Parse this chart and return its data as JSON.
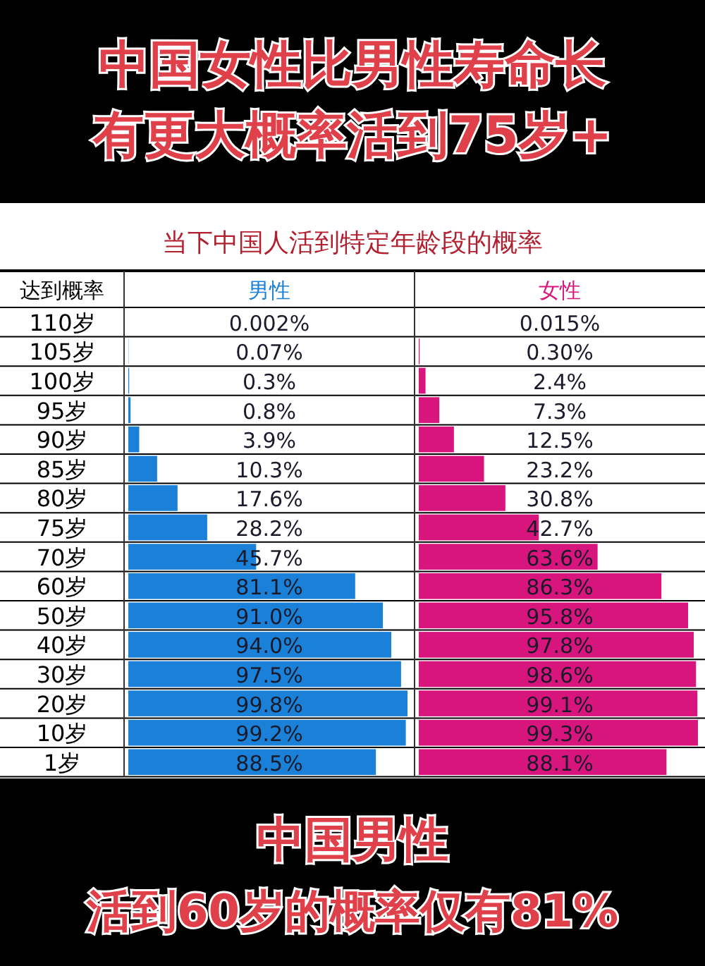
{
  "chart_data": [
    {
      "type": "bar",
      "orientation": "horizontal",
      "title": "中国女性比男性寿命长有更大概率活到75岁+",
      "subtitle": "当下中国人活到特定年龄段的概率",
      "ylabel": "达到概率",
      "categories": [
        "110岁",
        "105岁",
        "100岁",
        "95岁",
        "90岁",
        "85岁",
        "80岁",
        "75岁",
        "70岁",
        "60岁",
        "50岁",
        "40岁",
        "30岁",
        "20岁",
        "10岁",
        "1岁"
      ],
      "series": [
        {
          "name": "男性",
          "color": "#1a80d8",
          "values": [
            0.002,
            0.07,
            0.3,
            0.8,
            3.9,
            10.3,
            17.6,
            28.2,
            45.7,
            81.1,
            91.0,
            94.0,
            97.5,
            99.8,
            99.2,
            88.5
          ],
          "value_labels": [
            "0.002%",
            "0.07%",
            "0.3%",
            "0.8%",
            "3.9%",
            "10.3%",
            "17.6%",
            "28.2%",
            "45.7%",
            "81.1%",
            "91.0%",
            "94.0%",
            "97.5%",
            "99.8%",
            "99.2%",
            "88.5%"
          ]
        }
      ],
      "annotations": [
        "中国男性",
        "活到60岁的概率仅有81%"
      ]
    },
    {
      "type": "bar",
      "orientation": "horizontal",
      "categories": [
        null,
        null,
        null,
        null,
        null,
        null,
        null,
        null,
        null,
        null,
        null,
        null,
        null,
        null,
        null,
        null
      ],
      "series": [
        {
          "name": "女性",
          "color": "#d8157c",
          "values": [
            0.015,
            0.3,
            2.4,
            7.3,
            12.5,
            23.2,
            30.8,
            42.7,
            63.6,
            86.3,
            95.8,
            97.8,
            98.6,
            99.1,
            99.3,
            88.1
          ],
          "value_labels": [
            "0.015%",
            "0.30%",
            "2.4%",
            "7.3%",
            "12.5%",
            "23.2%",
            "30.8%",
            "42.7%",
            "63.6%",
            "86.3%",
            "95.8%",
            "97.8%",
            "98.6%",
            "99.1%",
            "99.3%",
            "88.1%"
          ]
        }
      ]
    }
  ]
}
